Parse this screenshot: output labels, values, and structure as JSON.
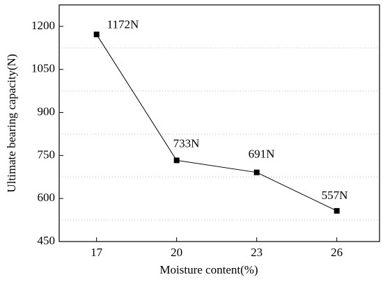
{
  "chart_data": {
    "type": "line",
    "x_label": "Moisture content(%)",
    "y_label": "Ultimate  bearing capacity(N)",
    "x": [
      17,
      20,
      23,
      26
    ],
    "series": [
      {
        "color": "#000000",
        "values": [
          1172,
          733,
          691,
          557
        ],
        "value_labels": [
          "1172N",
          "733N",
          "691N",
          "557N"
        ]
      }
    ],
    "xlim": [
      15.6,
      27.6
    ],
    "xticks": [
      17,
      20,
      23,
      26
    ],
    "ylim": [
      450,
      1275
    ],
    "yticks": [
      450,
      600,
      750,
      900,
      1050,
      1200
    ],
    "y_minor_grid": [
      525,
      675,
      825,
      975,
      1125
    ]
  }
}
